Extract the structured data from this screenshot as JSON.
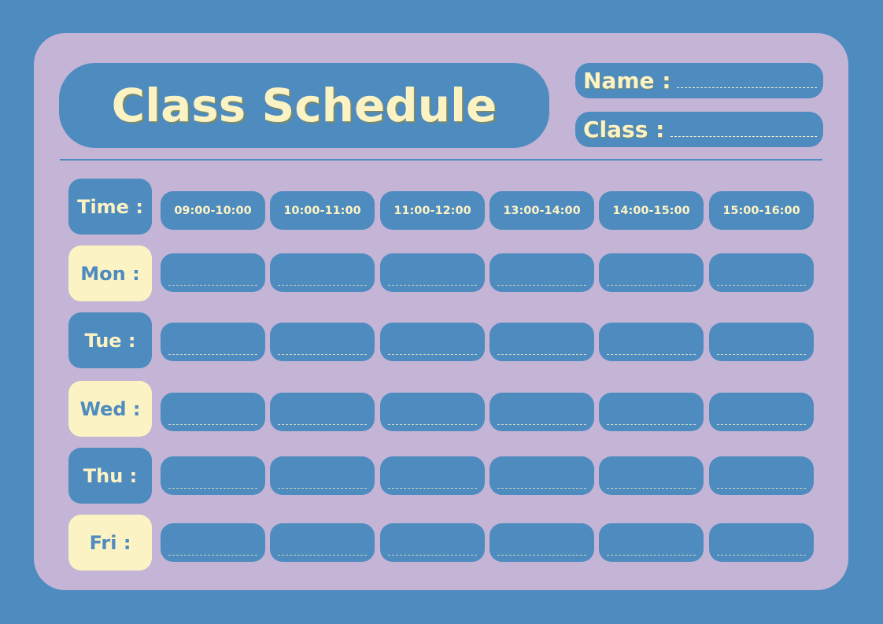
{
  "title": "Class Schedule",
  "fields": {
    "name_label": "Name :",
    "class_label": "Class :"
  },
  "time_label": "Time :",
  "times": [
    "09:00-10:00",
    "10:00-11:00",
    "11:00-12:00",
    "13:00-14:00",
    "14:00-15:00",
    "15:00-16:00"
  ],
  "days": [
    {
      "label": "Mon :",
      "style": "cream"
    },
    {
      "label": "Tue :",
      "style": "blue"
    },
    {
      "label": "Wed :",
      "style": "cream"
    },
    {
      "label": "Thu :",
      "style": "blue"
    },
    {
      "label": "Fri :",
      "style": "cream"
    }
  ],
  "colors": {
    "background": "#4e8bbf",
    "card": "#c4b4d6",
    "accent": "#fcf3c4"
  }
}
